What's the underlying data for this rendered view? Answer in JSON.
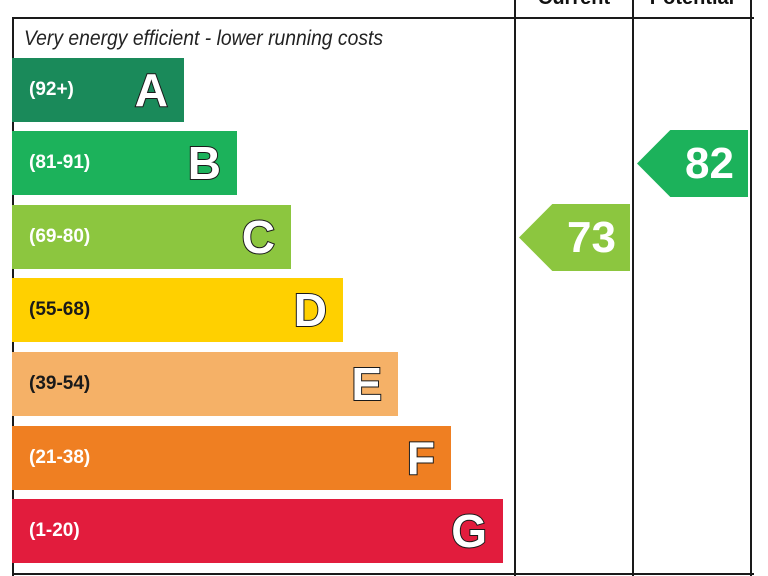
{
  "headers": {
    "current": "Current",
    "potential": "Potential"
  },
  "caption": "Very energy efficient - lower running costs",
  "chart_data": {
    "type": "bar",
    "categories": [
      "A",
      "B",
      "C",
      "D",
      "E",
      "F",
      "G"
    ],
    "ranges": [
      "(92+)",
      "(81-91)",
      "(69-80)",
      "(55-68)",
      "(39-54)",
      "(21-38)",
      "(1-20)"
    ],
    "colors": [
      "#1a8a5a",
      "#1cb25b",
      "#8cc63f",
      "#ffd000",
      "#f5b167",
      "#ef7f22",
      "#e21c3d"
    ],
    "current": {
      "value": 73,
      "band": "C",
      "color": "#8cc63f"
    },
    "potential": {
      "value": 82,
      "band": "B",
      "color": "#1cb25b"
    }
  }
}
